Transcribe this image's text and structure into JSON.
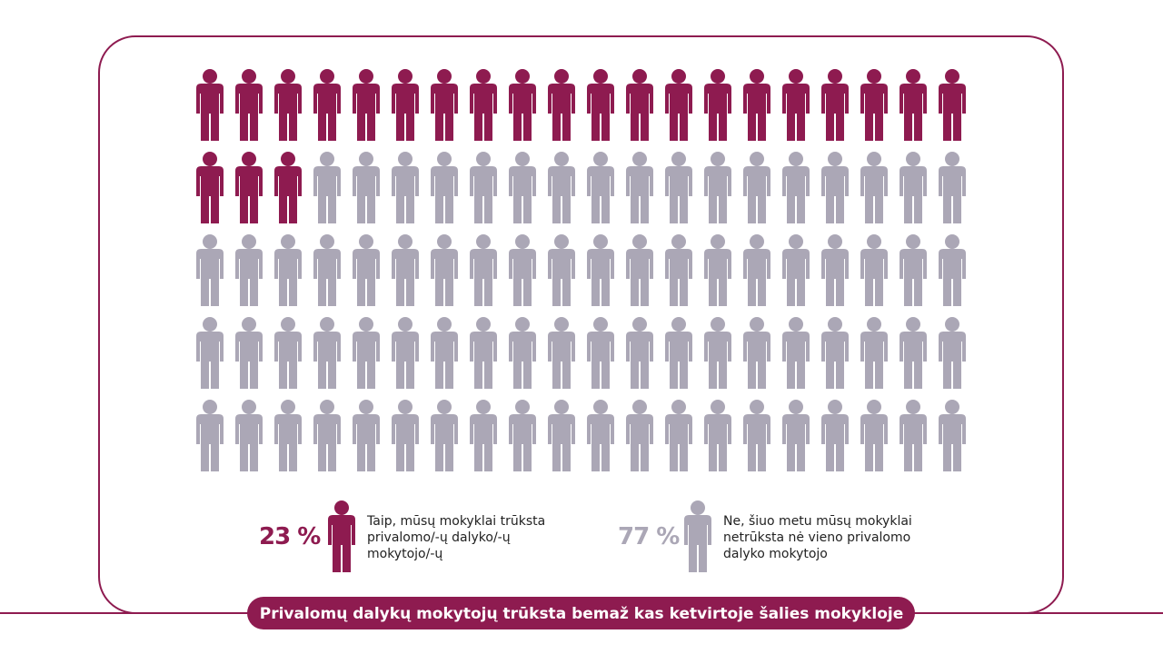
{
  "chart_data": {
    "type": "waffle",
    "title": "Privalomų dalykų mokytojų trūksta bemaž kas ketvirtoje šalies mokykloje",
    "categories": [
      "Taip, mūsų mokyklai trūksta privalomo/-ų dalyko/-ų mokytojo/-ų",
      "Ne, šiuo metu mūsų mokyklai netrūksta nė vieno privalomo dalyko mokytojo"
    ],
    "values": [
      23,
      77
    ],
    "value_labels": [
      "23 %",
      "77 %"
    ],
    "colors": [
      "#8e1b50",
      "#aba7b6"
    ]
  }
}
